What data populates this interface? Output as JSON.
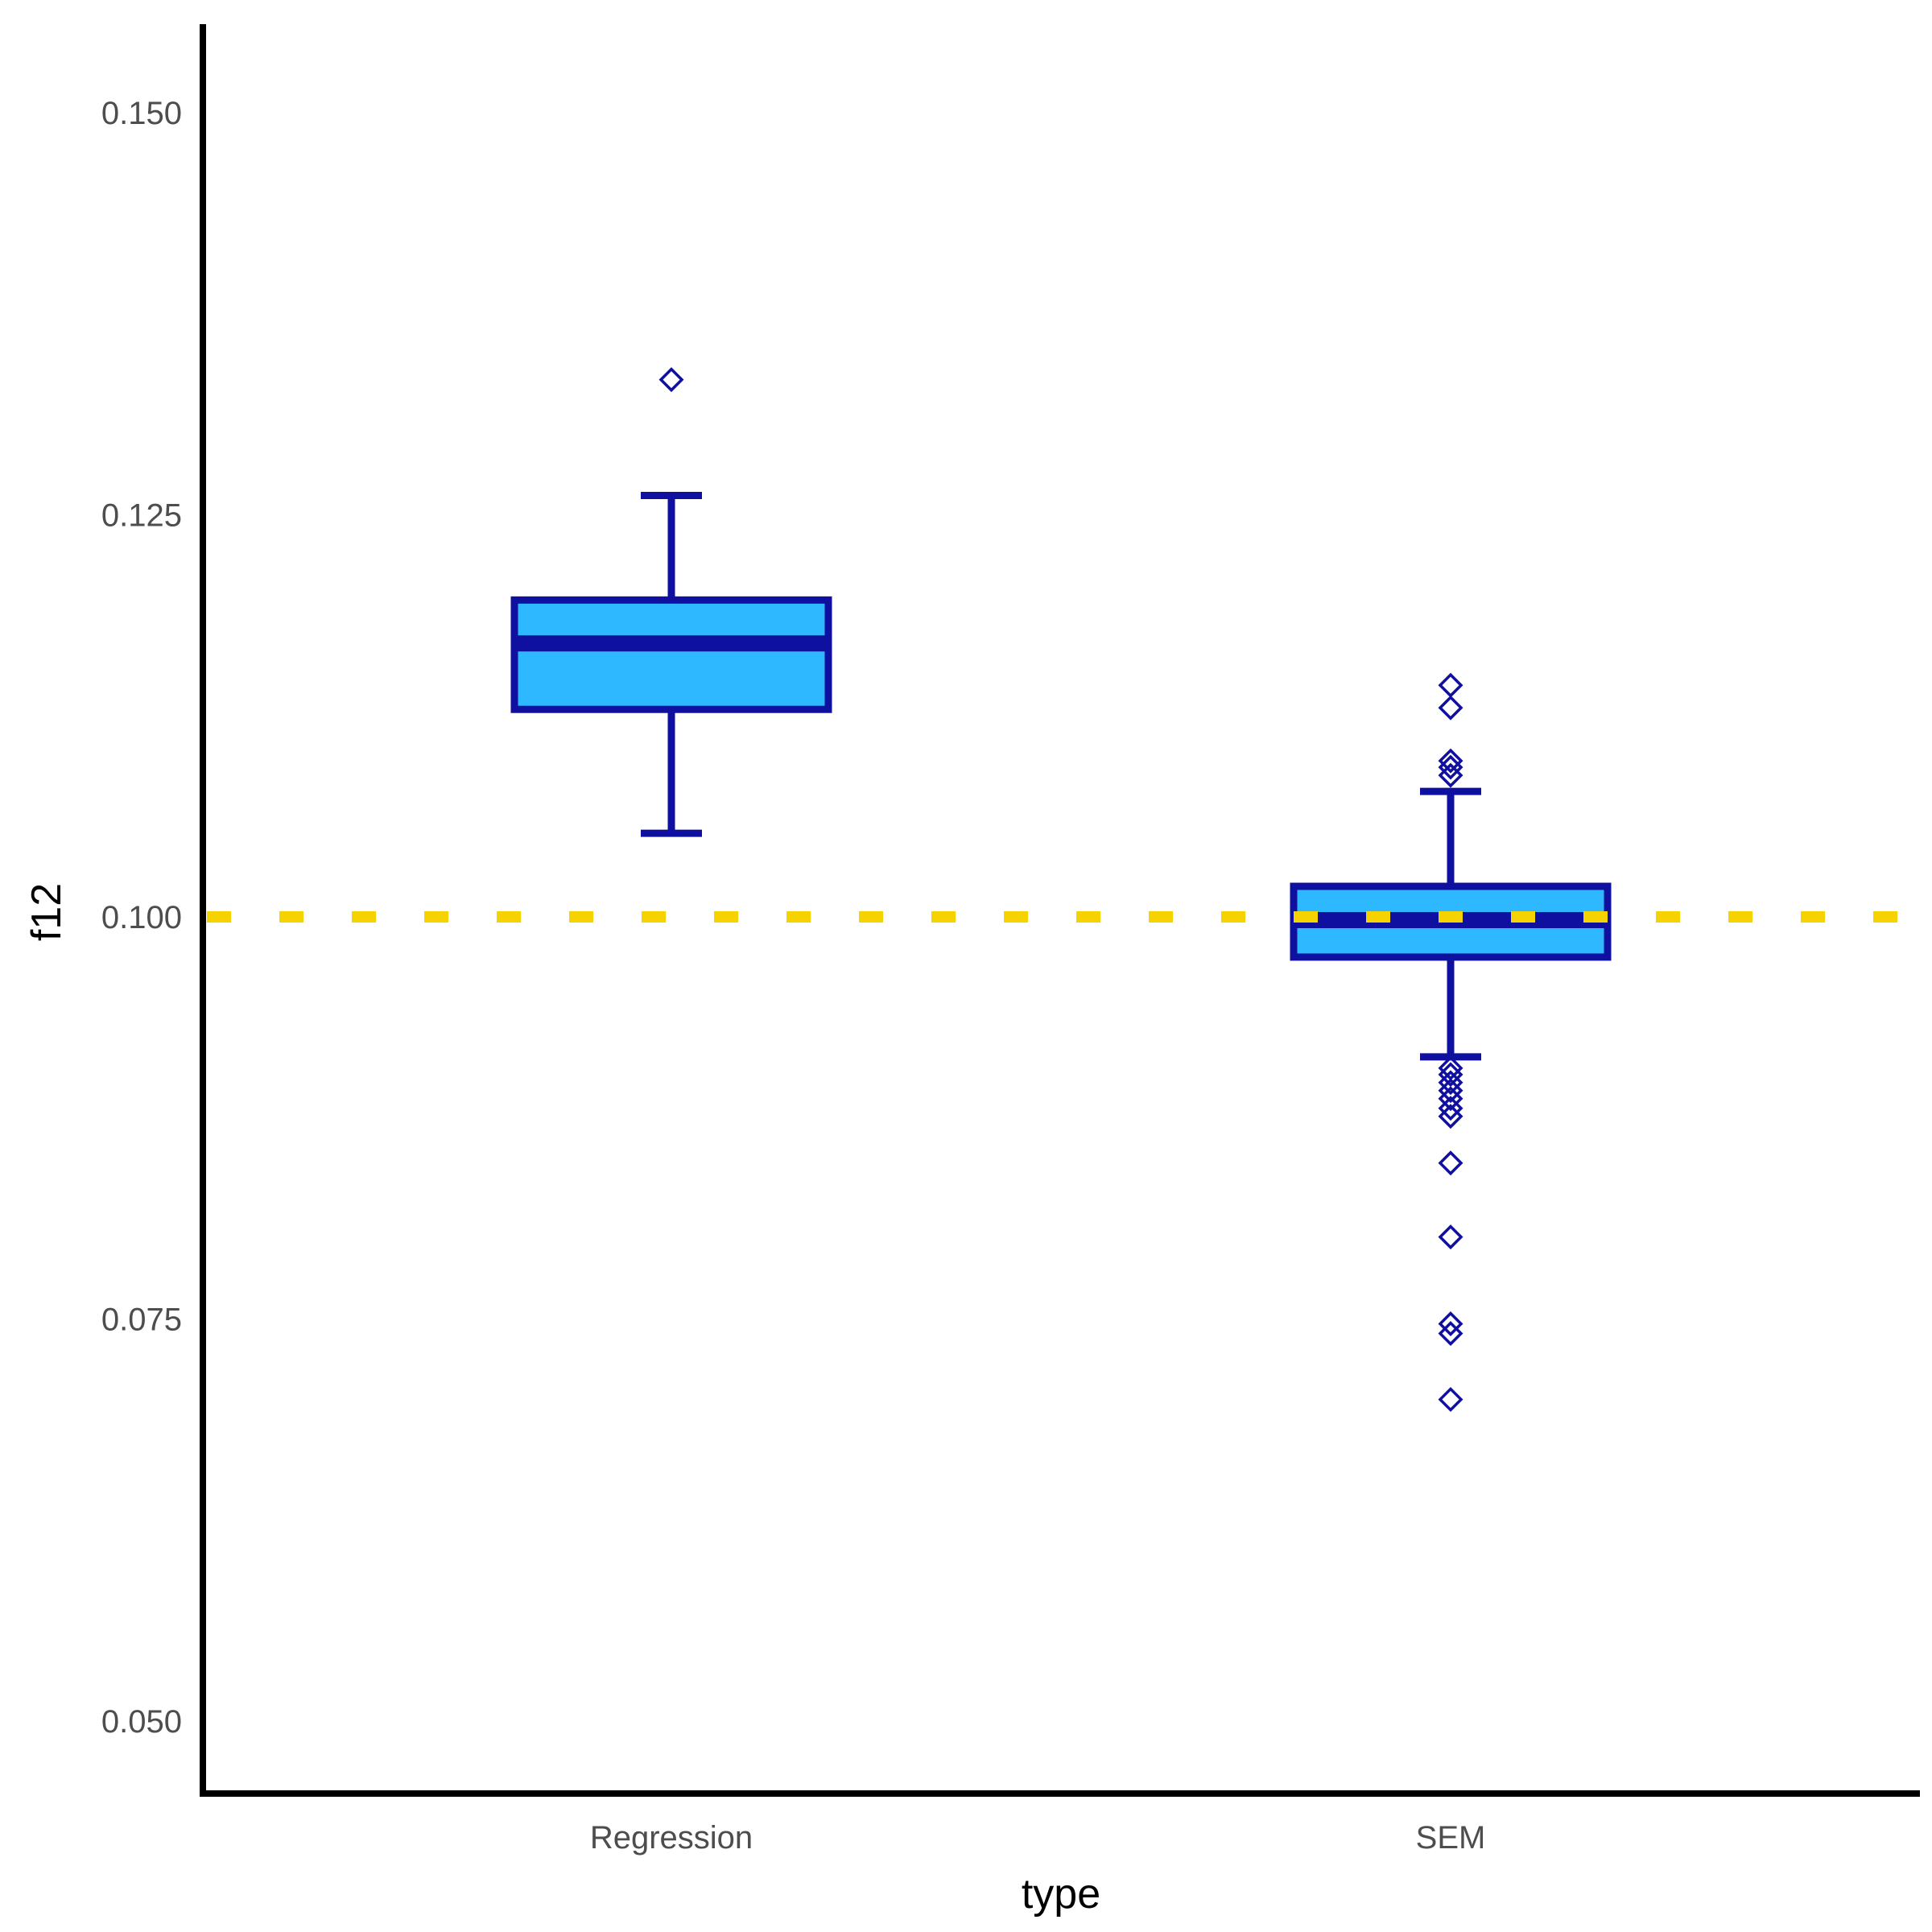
{
  "chart_data": {
    "type": "boxplot",
    "xlabel": "type",
    "ylabel": "f12",
    "ylim": [
      0.0455,
      0.1555
    ],
    "yticks": [
      0.05,
      0.075,
      0.1,
      0.125,
      0.15
    ],
    "ytick_labels": [
      "0.050",
      "0.075",
      "0.100",
      "0.125",
      "0.150"
    ],
    "categories": [
      "Regression",
      "SEM"
    ],
    "boxes": [
      {
        "category": "Regression",
        "whisker_low": 0.1052,
        "q1": 0.1129,
        "median": 0.117,
        "q3": 0.1197,
        "whisker_high": 0.1262,
        "outliers": [
          0.1334
        ]
      },
      {
        "category": "SEM",
        "whisker_low": 0.0913,
        "q1": 0.0975,
        "median": 0.0998,
        "q3": 0.1019,
        "whisker_high": 0.1078,
        "outliers": [
          0.1144,
          0.113,
          0.1097,
          0.1093,
          0.1088,
          0.0906,
          0.0902,
          0.0897,
          0.0892,
          0.0887,
          0.0881,
          0.0876,
          0.0847,
          0.0801,
          0.0747,
          0.0741,
          0.07
        ]
      }
    ],
    "reference_line": {
      "y": 0.1,
      "style": "dashed"
    },
    "grid": false,
    "colors": {
      "box_fill": "#2eb8ff",
      "box_edge": "#1010a0",
      "reference_line": "#f5d200",
      "axis": "#000000"
    }
  }
}
